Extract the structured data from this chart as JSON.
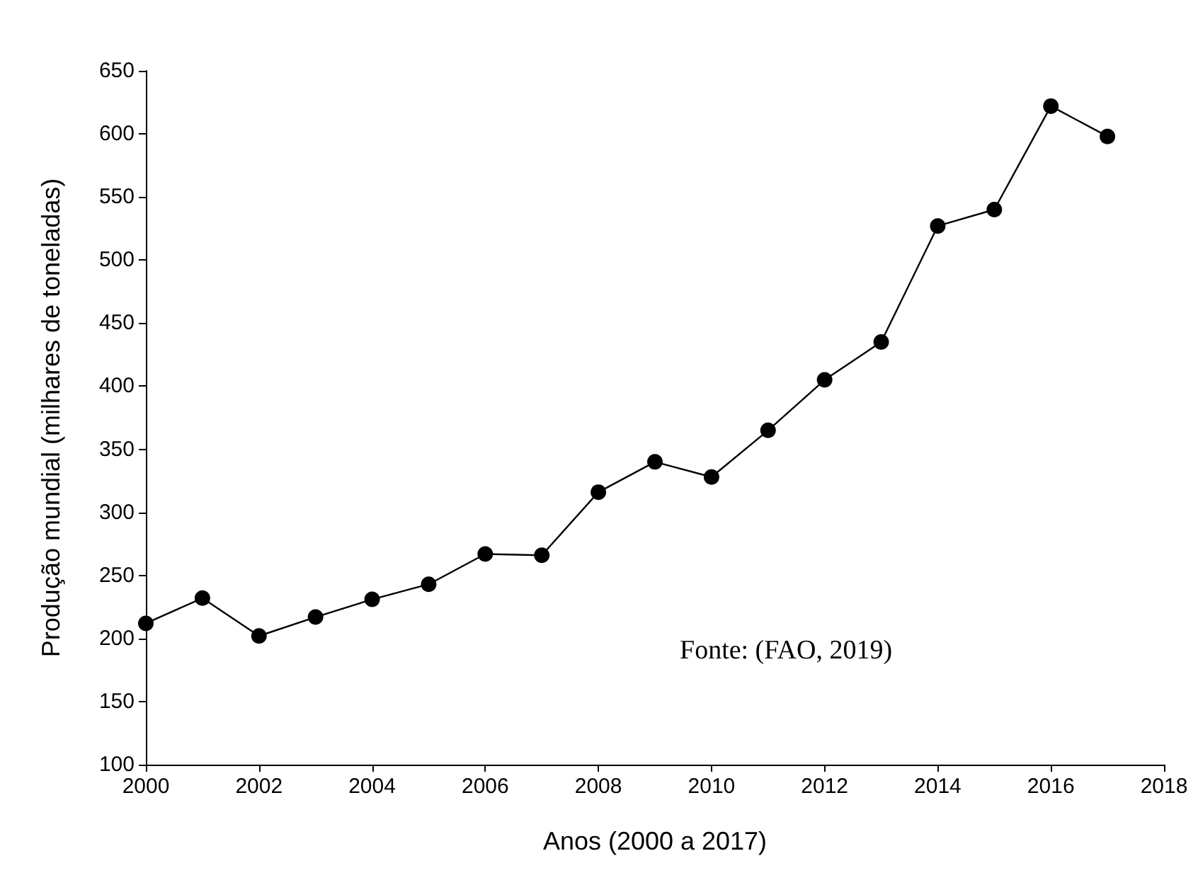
{
  "chart_data": {
    "type": "line",
    "xlabel": "Anos (2000 a 2017)",
    "ylabel": "Produção mundial (milhares de toneladas)",
    "x": [
      2000,
      2001,
      2002,
      2003,
      2004,
      2005,
      2006,
      2007,
      2008,
      2009,
      2010,
      2011,
      2012,
      2013,
      2014,
      2015,
      2016,
      2017
    ],
    "series": [
      {
        "color": "#000000",
        "values": [
          212,
          232,
          202,
          217,
          231,
          243,
          267,
          266,
          316,
          340,
          328,
          365,
          405,
          435,
          527,
          540,
          622,
          598
        ]
      }
    ],
    "xlim": [
      2000,
      2018
    ],
    "xticks": [
      2000,
      2002,
      2004,
      2006,
      2008,
      2010,
      2012,
      2014,
      2016,
      2018
    ],
    "ylim": [
      100,
      650
    ],
    "yticks": [
      100,
      150,
      200,
      250,
      300,
      350,
      400,
      450,
      500,
      550,
      600,
      650
    ],
    "annotations": [
      "Fonte: (FAO, 2019)"
    ],
    "marker": "circle",
    "line_style": "solid"
  }
}
